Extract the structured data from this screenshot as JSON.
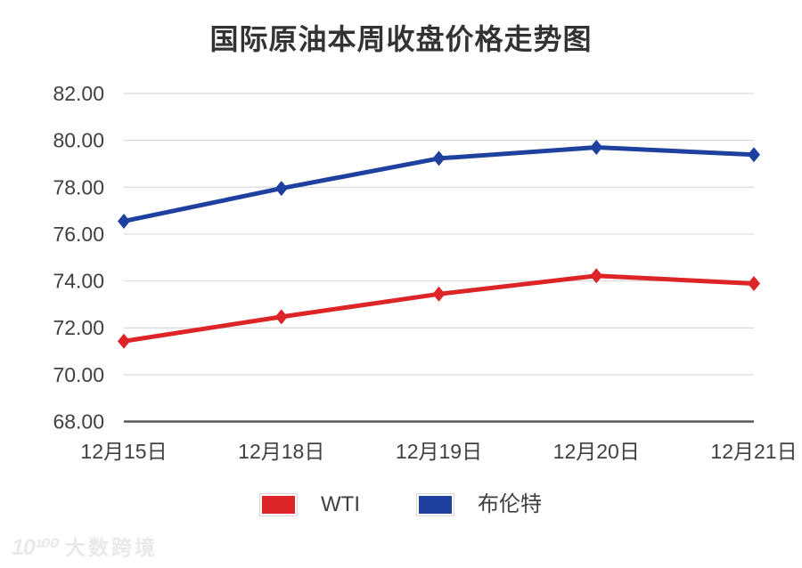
{
  "title": "国际原油本周收盘价格走势图",
  "watermark": {
    "logo": "10¹⁰⁰",
    "text": "大数跨境"
  },
  "colors": {
    "wti_red": "#dd2426",
    "brent_blue": "#1e409e",
    "gridline": "#d9d9d9",
    "axis_line": "#595959",
    "tick_text": "#404040",
    "title_text": "#333333",
    "watermark_text": "#e9e9e9",
    "background": "#ffffff"
  },
  "legend": {
    "items": [
      {
        "label": "WTI",
        "color": "#dd2426"
      },
      {
        "label": "布伦特",
        "color": "#1e409e"
      }
    ]
  },
  "chart_data": {
    "type": "line",
    "title": "国际原油本周收盘价格走势图",
    "categories": [
      "12月15日",
      "12月18日",
      "12月19日",
      "12月20日",
      "12月21日"
    ],
    "series": [
      {
        "name": "WTI",
        "color": "#dd2426",
        "marker": "diamond",
        "values": [
          71.43,
          72.47,
          73.44,
          74.22,
          73.89
        ]
      },
      {
        "name": "布伦特",
        "color": "#1e409e",
        "marker": "diamond",
        "values": [
          76.55,
          77.95,
          79.23,
          79.7,
          79.39
        ]
      }
    ],
    "xlabel": "",
    "ylabel": "",
    "ylim": [
      68,
      82
    ],
    "ytick_step": 2,
    "ytick_labels": [
      "68.00",
      "70.00",
      "72.00",
      "74.00",
      "76.00",
      "78.00",
      "80.00",
      "82.00"
    ],
    "grid": "horizontal",
    "legend_position": "bottom"
  }
}
